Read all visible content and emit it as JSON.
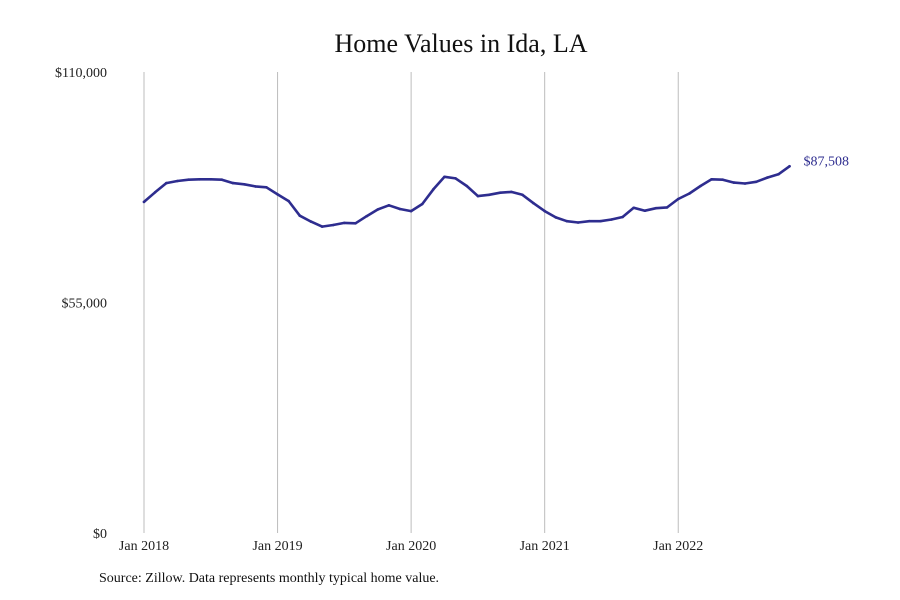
{
  "chart_data": {
    "type": "line",
    "title": "Home Values in Ida, LA",
    "xlabel": "",
    "ylabel": "",
    "x_start": "Jan 2018",
    "x_ticks": [
      {
        "label": "Jan 2018",
        "month_index": 0
      },
      {
        "label": "Jan 2019",
        "month_index": 12
      },
      {
        "label": "Jan 2020",
        "month_index": 24
      },
      {
        "label": "Jan 2021",
        "month_index": 36
      },
      {
        "label": "Jan 2022",
        "month_index": 48
      }
    ],
    "y_ticks": [
      {
        "label": "$0",
        "value": 0
      },
      {
        "label": "$55,000",
        "value": 55000
      },
      {
        "label": "$110,000",
        "value": 110000
      }
    ],
    "ylim": [
      0,
      110000
    ],
    "grid": {
      "vertical": true,
      "horizontal": false
    },
    "series": [
      {
        "color": "#2e2d8f",
        "values": [
          79000,
          81300,
          83500,
          84000,
          84300,
          84400,
          84400,
          84300,
          83500,
          83200,
          82700,
          82500,
          80800,
          79200,
          75700,
          74300,
          73100,
          73500,
          74000,
          73900,
          75600,
          77200,
          78200,
          77300,
          76800,
          78500,
          82000,
          85000,
          84600,
          82800,
          80400,
          80700,
          81200,
          81400,
          80700,
          78700,
          76800,
          75300,
          74400,
          74100,
          74400,
          74400,
          74800,
          75400,
          77600,
          76900,
          77500,
          77700,
          79700,
          81000,
          82800,
          84400,
          84300,
          83600,
          83400,
          83800,
          84800,
          85600,
          87508
        ],
        "end_label": "$87,508"
      }
    ]
  },
  "footer": {
    "source": "Source: Zillow. Data represents monthly typical home value."
  }
}
